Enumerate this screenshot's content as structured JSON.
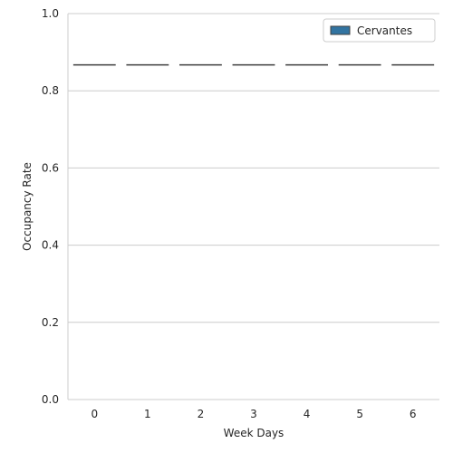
{
  "chart_data": {
    "type": "box",
    "categories": [
      "0",
      "1",
      "2",
      "3",
      "4",
      "5",
      "6"
    ],
    "series": [
      {
        "name": "Cervantes",
        "values": [
          0.867,
          0.867,
          0.867,
          0.867,
          0.867,
          0.867,
          0.867
        ]
      }
    ],
    "xlabel": "Week Days",
    "ylabel": "Occupancy Rate",
    "ylim": [
      0.0,
      1.0
    ],
    "yticks": [
      "0.0",
      "0.2",
      "0.4",
      "0.6",
      "0.8",
      "1.0"
    ],
    "grid": "horizontal",
    "legend_position": "top-right",
    "colors": {
      "series": "#3274a1",
      "grid": "#cccccc",
      "spine": "#cccccc",
      "text": "#262626",
      "line": "#3f3f3f"
    }
  }
}
